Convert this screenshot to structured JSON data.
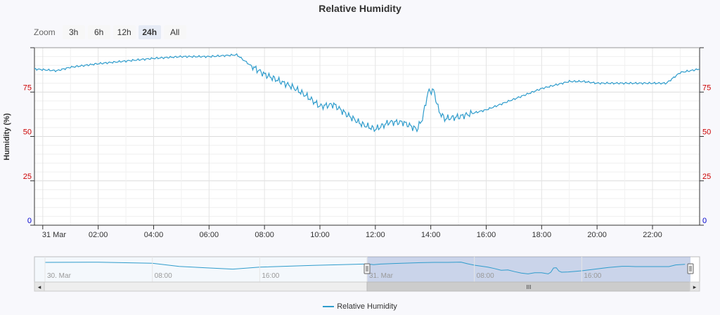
{
  "chart_data": {
    "type": "line",
    "title": "Relative Humidity",
    "xlabel": "",
    "ylabel": "Humidity (%)",
    "ylim": [
      0,
      100
    ],
    "y_ticks": [
      "0",
      "25",
      "50",
      "75"
    ],
    "x_ticks": [
      "31 Mar",
      "02:00",
      "04:00",
      "06:00",
      "08:00",
      "10:00",
      "12:00",
      "14:00",
      "16:00",
      "18:00",
      "20:00",
      "22:00"
    ],
    "x_unit": "hours since 31 Mar 00:00",
    "xlim": [
      -0.3,
      23.7
    ],
    "grid": true,
    "legend_position": "bottom-center",
    "series": [
      {
        "name": "Relative Humidity",
        "color": "#2f9ccc",
        "x": [
          -0.3,
          0.5,
          1.0,
          2.0,
          4.0,
          5.0,
          6.0,
          7.0,
          7.5,
          8.0,
          9.0,
          9.5,
          10.0,
          10.5,
          11.0,
          11.5,
          12.0,
          12.5,
          13.0,
          13.5,
          13.7,
          13.9,
          14.1,
          14.3,
          14.5,
          15.0,
          16.0,
          17.0,
          18.0,
          19.0,
          19.5,
          20.0,
          21.0,
          22.0,
          22.5,
          23.0,
          23.7
        ],
        "values": [
          88,
          87,
          89,
          91,
          94,
          95,
          95,
          96,
          90,
          85,
          78,
          73,
          67,
          68,
          62,
          57,
          54,
          58,
          58,
          54,
          60,
          75,
          76,
          64,
          60,
          61,
          65,
          71,
          77,
          81,
          81,
          80,
          80,
          80,
          80,
          86,
          88
        ]
      }
    ],
    "navigator": {
      "x_ticks": [
        "30. Mar",
        "08:00",
        "16:00",
        "31. Mar",
        "08:00",
        "16:00"
      ]
    }
  },
  "ui": {
    "zoom_label": "Zoom",
    "zoom_buttons": [
      "3h",
      "6h",
      "12h",
      "24h",
      "All"
    ],
    "zoom_selected": "24h",
    "scrollbar_grip": "III",
    "scroll_left_arrow": "◂",
    "scroll_right_arrow": "▸",
    "handle_glyph": "||"
  }
}
